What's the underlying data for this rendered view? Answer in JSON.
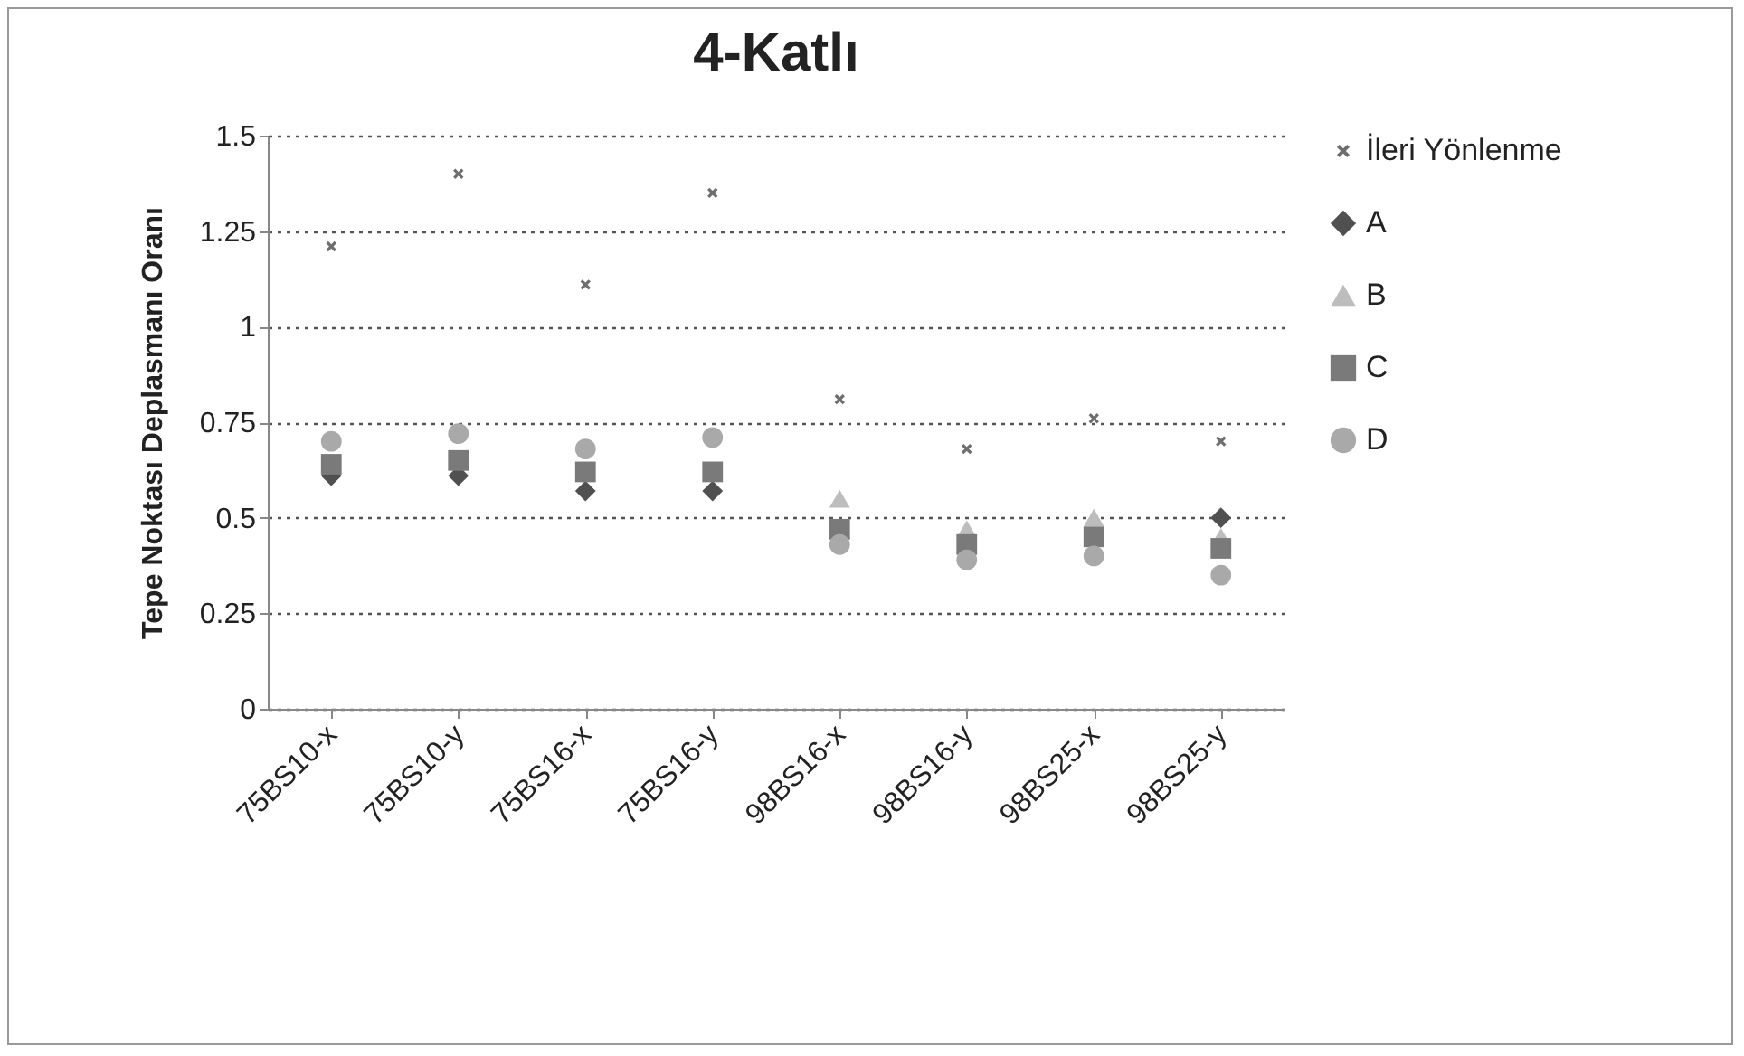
{
  "chart_data": {
    "type": "scatter",
    "title": "4-Katlı",
    "ylabel": "Tepe Noktası Deplasmanı  Oranı",
    "categories": [
      "75BS10-x",
      "75BS10-y",
      "75BS16-x",
      "75BS16-y",
      "98BS16-x",
      "98BS16-y",
      "98BS25-x",
      "98BS25-y"
    ],
    "series": [
      {
        "name": "İleri Yönlenme",
        "color": "#6e6e6e",
        "marker": "cross",
        "values": [
          1.21,
          1.4,
          1.11,
          1.35,
          0.81,
          0.68,
          0.76,
          0.7
        ]
      },
      {
        "name": "A",
        "color": "#505050",
        "marker": "diamond",
        "values": [
          0.61,
          0.61,
          0.57,
          0.57,
          null,
          null,
          null,
          0.5
        ]
      },
      {
        "name": "B",
        "color": "#bdbdbd",
        "marker": "triangle",
        "values": [
          null,
          null,
          null,
          null,
          0.55,
          0.47,
          0.5,
          0.45
        ]
      },
      {
        "name": "C",
        "color": "#7a7a7a",
        "marker": "square",
        "values": [
          0.64,
          0.65,
          0.62,
          0.62,
          0.47,
          0.43,
          0.45,
          0.42
        ]
      },
      {
        "name": "D",
        "color": "#a9a9a9",
        "marker": "circle",
        "values": [
          0.7,
          0.72,
          0.68,
          0.71,
          0.43,
          0.39,
          0.4,
          0.35
        ]
      }
    ],
    "ylim": [
      0,
      1.5
    ],
    "yticks": [
      0,
      0.25,
      0.5,
      0.75,
      1,
      1.25,
      1.5
    ],
    "grid": "y",
    "legend": "right"
  }
}
